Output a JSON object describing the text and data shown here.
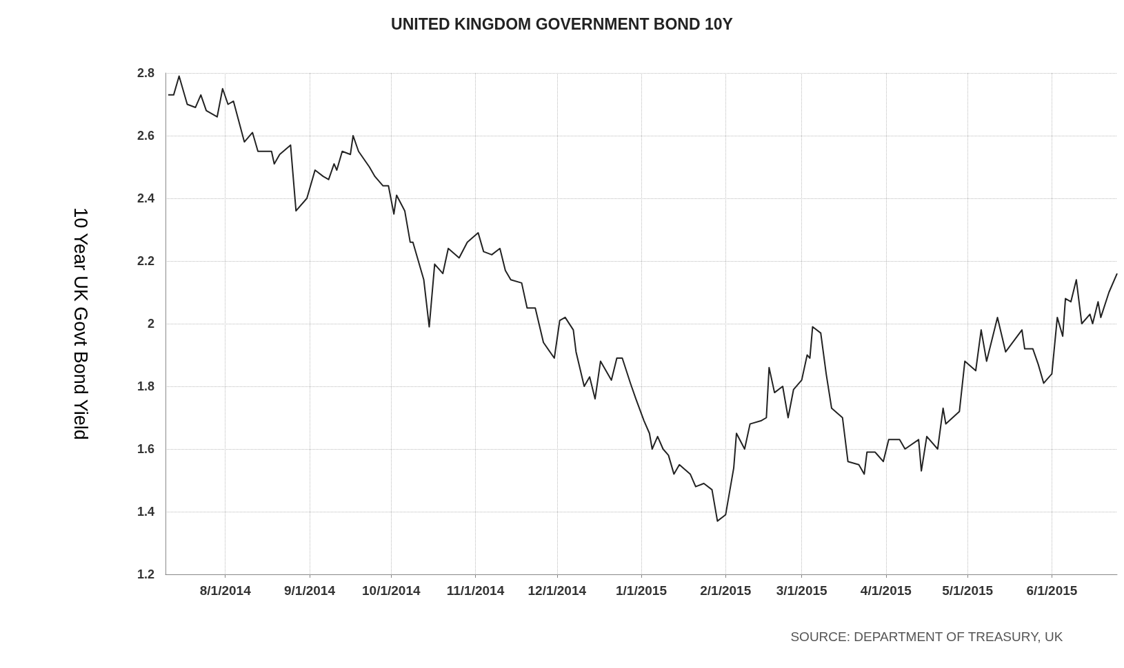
{
  "chart_data": {
    "type": "line",
    "title": "UNITED KINGDOM GOVERNMENT BOND 10Y",
    "ylabel": "10 Year UK Govt Bond Yield",
    "annotations": [
      "SOURCE: DEPARTMENT OF TREASURY, UK"
    ],
    "x": [
      "2014-07-11",
      "2014-07-13",
      "2014-07-15",
      "2014-07-18",
      "2014-07-21",
      "2014-07-23",
      "2014-07-25",
      "2014-07-29",
      "2014-07-31",
      "2014-08-02",
      "2014-08-04",
      "2014-08-08",
      "2014-08-11",
      "2014-08-13",
      "2014-08-18",
      "2014-08-19",
      "2014-08-21",
      "2014-08-25",
      "2014-08-27",
      "2014-08-31",
      "2014-09-03",
      "2014-09-06",
      "2014-09-08",
      "2014-09-10",
      "2014-09-11",
      "2014-09-13",
      "2014-09-16",
      "2014-09-17",
      "2014-09-19",
      "2014-09-23",
      "2014-09-25",
      "2014-09-28",
      "2014-09-30",
      "2014-10-02",
      "2014-10-03",
      "2014-10-06",
      "2014-10-08",
      "2014-10-09",
      "2014-10-13",
      "2014-10-15",
      "2014-10-17",
      "2014-10-20",
      "2014-10-22",
      "2014-10-26",
      "2014-10-29",
      "2014-11-02",
      "2014-11-04",
      "2014-11-07",
      "2014-11-10",
      "2014-11-12",
      "2014-11-14",
      "2014-11-18",
      "2014-11-20",
      "2014-11-23",
      "2014-11-26",
      "2014-11-30",
      "2014-12-02",
      "2014-12-04",
      "2014-12-07",
      "2014-12-08",
      "2014-12-11",
      "2014-12-13",
      "2014-12-15",
      "2014-12-17",
      "2014-12-21",
      "2014-12-23",
      "2014-12-25",
      "2014-12-28",
      "2014-12-30",
      "2015-01-02",
      "2015-01-04",
      "2015-01-05",
      "2015-01-07",
      "2015-01-09",
      "2015-01-11",
      "2015-01-13",
      "2015-01-15",
      "2015-01-19",
      "2015-01-21",
      "2015-01-24",
      "2015-01-27",
      "2015-01-29",
      "2015-02-01",
      "2015-02-04",
      "2015-02-05",
      "2015-02-08",
      "2015-02-10",
      "2015-02-14",
      "2015-02-16",
      "2015-02-17",
      "2015-02-19",
      "2015-02-22",
      "2015-02-24",
      "2015-02-26",
      "2015-03-01",
      "2015-03-03",
      "2015-03-04",
      "2015-03-05",
      "2015-03-08",
      "2015-03-10",
      "2015-03-12",
      "2015-03-16",
      "2015-03-18",
      "2015-03-22",
      "2015-03-24",
      "2015-03-25",
      "2015-03-28",
      "2015-03-31",
      "2015-04-02",
      "2015-04-06",
      "2015-04-08",
      "2015-04-13",
      "2015-04-14",
      "2015-04-16",
      "2015-04-20",
      "2015-04-22",
      "2015-04-23",
      "2015-04-28",
      "2015-04-30",
      "2015-05-04",
      "2015-05-06",
      "2015-05-08",
      "2015-05-12",
      "2015-05-15",
      "2015-05-21",
      "2015-05-22",
      "2015-05-25",
      "2015-05-27",
      "2015-05-29",
      "2015-06-01",
      "2015-06-03",
      "2015-06-05",
      "2015-06-06",
      "2015-06-08",
      "2015-06-10",
      "2015-06-12",
      "2015-06-15",
      "2015-06-16",
      "2015-06-18",
      "2015-06-19",
      "2015-06-22",
      "2015-06-25"
    ],
    "values": [
      2.73,
      2.73,
      2.79,
      2.7,
      2.69,
      2.73,
      2.68,
      2.66,
      2.75,
      2.7,
      2.71,
      2.58,
      2.61,
      2.55,
      2.55,
      2.51,
      2.54,
      2.57,
      2.36,
      2.4,
      2.49,
      2.47,
      2.46,
      2.51,
      2.49,
      2.55,
      2.54,
      2.6,
      2.55,
      2.5,
      2.47,
      2.44,
      2.44,
      2.35,
      2.41,
      2.36,
      2.26,
      2.26,
      2.14,
      1.99,
      2.19,
      2.16,
      2.24,
      2.21,
      2.26,
      2.29,
      2.23,
      2.22,
      2.24,
      2.17,
      2.14,
      2.13,
      2.05,
      2.05,
      1.94,
      1.89,
      2.01,
      2.02,
      1.98,
      1.91,
      1.8,
      1.83,
      1.76,
      1.88,
      1.82,
      1.89,
      1.89,
      1.81,
      1.76,
      1.69,
      1.65,
      1.6,
      1.64,
      1.6,
      1.58,
      1.52,
      1.55,
      1.52,
      1.48,
      1.49,
      1.47,
      1.37,
      1.39,
      1.54,
      1.65,
      1.6,
      1.68,
      1.69,
      1.7,
      1.86,
      1.78,
      1.8,
      1.7,
      1.79,
      1.82,
      1.9,
      1.89,
      1.99,
      1.97,
      1.84,
      1.73,
      1.7,
      1.56,
      1.55,
      1.52,
      1.59,
      1.59,
      1.56,
      1.63,
      1.63,
      1.6,
      1.63,
      1.53,
      1.64,
      1.6,
      1.73,
      1.68,
      1.72,
      1.88,
      1.85,
      1.98,
      1.88,
      2.02,
      1.91,
      1.98,
      1.92,
      1.92,
      1.87,
      1.81,
      1.84,
      2.02,
      1.96,
      2.08,
      2.07,
      2.14,
      2.0,
      2.03,
      2.0,
      2.07,
      2.02,
      2.1,
      2.16
    ],
    "color": "#222222",
    "marker": "none",
    "grid": true,
    "xlim": [
      "2014-07-10",
      "2015-06-25"
    ],
    "xticks": [
      {
        "value": "2014-08-01",
        "label": "8/1/2014"
      },
      {
        "value": "2014-09-01",
        "label": "9/1/2014"
      },
      {
        "value": "2014-10-01",
        "label": "10/1/2014"
      },
      {
        "value": "2014-11-01",
        "label": "11/1/2014"
      },
      {
        "value": "2014-12-01",
        "label": "12/1/2014"
      },
      {
        "value": "2015-01-01",
        "label": "1/1/2015"
      },
      {
        "value": "2015-02-01",
        "label": "2/1/2015"
      },
      {
        "value": "2015-03-01",
        "label": "3/1/2015"
      },
      {
        "value": "2015-04-01",
        "label": "4/1/2015"
      },
      {
        "value": "2015-05-01",
        "label": "5/1/2015"
      },
      {
        "value": "2015-06-01",
        "label": "6/1/2015"
      }
    ],
    "ylim": [
      1.2,
      2.8
    ],
    "yticks": [
      1.2,
      1.4,
      1.6,
      1.8,
      2,
      2.2,
      2.4,
      2.6,
      2.8
    ]
  }
}
